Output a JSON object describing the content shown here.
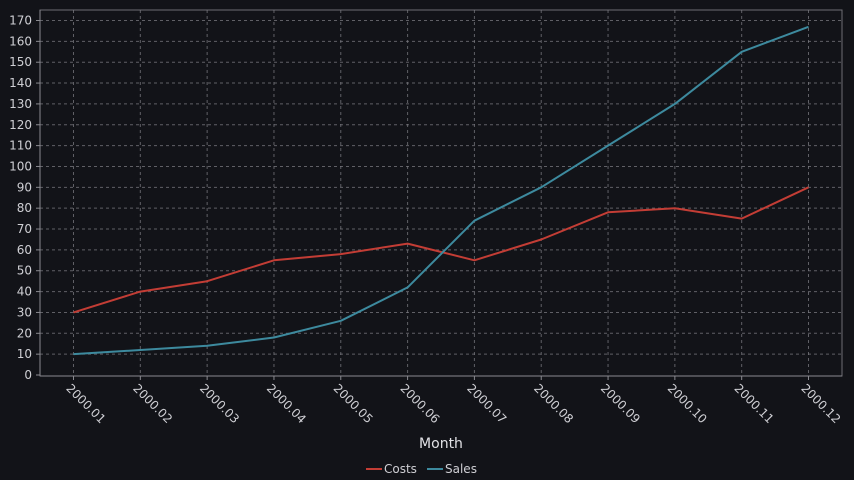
{
  "chart_data": {
    "type": "line",
    "categories": [
      "2000.01",
      "2000.02",
      "2000.03",
      "2000.04",
      "2000.05",
      "2000.06",
      "2000.07",
      "2000.08",
      "2000.09",
      "2000.10",
      "2000.11",
      "2000.12"
    ],
    "series": [
      {
        "name": "Costs",
        "color": "#c33d35",
        "values": [
          30,
          40,
          45,
          55,
          58,
          63,
          55,
          65,
          78,
          80,
          75,
          90
        ]
      },
      {
        "name": "Sales",
        "color": "#3d8a9e",
        "values": [
          10,
          12,
          14,
          18,
          26,
          42,
          74,
          90,
          110,
          130,
          155,
          167
        ]
      }
    ],
    "xlabel": "Month",
    "ylabel": "",
    "ylim": [
      0,
      170
    ],
    "ytick_step": 10,
    "grid": true,
    "legend": "bottom-center",
    "colors": {
      "background": "#121318",
      "grid": "#7a7a80",
      "text": "#cfcfd4"
    }
  }
}
